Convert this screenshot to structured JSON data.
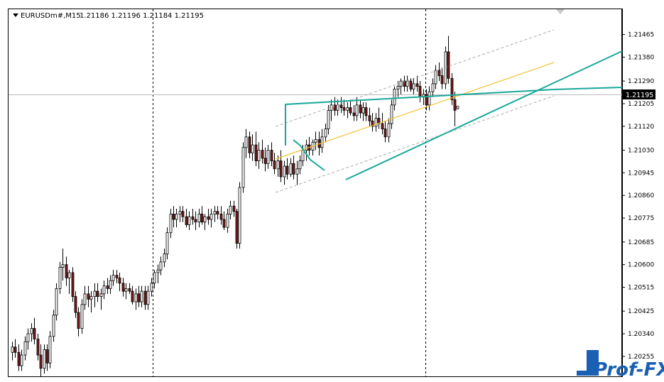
{
  "header": {
    "symbol": "EURUSDm#,M15",
    "ohlc": "1.21186 1.21196 1.21184 1.21195"
  },
  "price_label": "1.21195",
  "logo": {
    "text": "Prof-FX"
  },
  "colors": {
    "background": "#ffffff",
    "candle_bull": "#ffffff",
    "candle_bear": "#7a1c1c",
    "candle_outline": "#000000",
    "trendline": "#1aa89a",
    "midline": "#f2c230",
    "channel": "#aaaaaa",
    "price_line": "#bbbbbb",
    "logo": "#1a5fb4"
  },
  "chart_data": {
    "type": "candlestick",
    "symbol": "EURUSDm#",
    "timeframe": "M15",
    "ylim": [
      1.2018,
      1.2156
    ],
    "y_ticks": [
      "1.21465",
      "1.21380",
      "1.21290",
      "1.21205",
      "1.21120",
      "1.21030",
      "1.20945",
      "1.20860",
      "1.20775",
      "1.20685",
      "1.20600",
      "1.20515",
      "1.20425",
      "1.20340",
      "1.20255"
    ],
    "last_price": 1.21195,
    "grid": false,
    "period_separators": [
      47,
      134
    ],
    "candles": [
      [
        1.2027,
        1.2031,
        1.2024,
        1.2029
      ],
      [
        1.2029,
        1.2032,
        1.2025,
        1.2027
      ],
      [
        1.2027,
        1.203,
        1.202,
        1.2022
      ],
      [
        1.2022,
        1.2028,
        1.202,
        1.2026
      ],
      [
        1.2026,
        1.2033,
        1.2024,
        1.2031
      ],
      [
        1.2031,
        1.2036,
        1.2028,
        1.2034
      ],
      [
        1.2034,
        1.2038,
        1.2031,
        1.2036
      ],
      [
        1.2036,
        1.204,
        1.203,
        1.2032
      ],
      [
        1.2032,
        1.2034,
        1.2024,
        1.2026
      ],
      [
        1.2026,
        1.203,
        1.2018,
        1.2021
      ],
      [
        1.2021,
        1.203,
        1.2019,
        1.2028
      ],
      [
        1.2028,
        1.203,
        1.202,
        1.2023
      ],
      [
        1.2023,
        1.2035,
        1.2021,
        1.2033
      ],
      [
        1.2033,
        1.2043,
        1.2031,
        1.2041
      ],
      [
        1.2041,
        1.2053,
        1.2039,
        1.2051
      ],
      [
        1.2051,
        1.2061,
        1.2049,
        1.2059
      ],
      [
        1.2059,
        1.2066,
        1.2054,
        1.206
      ],
      [
        1.206,
        1.2063,
        1.2052,
        1.2055
      ],
      [
        1.2055,
        1.2058,
        1.2049,
        1.2057
      ],
      [
        1.2057,
        1.2059,
        1.2046,
        1.2048
      ],
      [
        1.2048,
        1.205,
        1.204,
        1.2042
      ],
      [
        1.2042,
        1.2044,
        1.2033,
        1.2036
      ],
      [
        1.2036,
        1.2047,
        1.2034,
        1.2045
      ],
      [
        1.2045,
        1.2052,
        1.2043,
        1.2049
      ],
      [
        1.2049,
        1.2052,
        1.2044,
        1.2047
      ],
      [
        1.2047,
        1.205,
        1.2042,
        1.2048
      ],
      [
        1.2048,
        1.2053,
        1.2044,
        1.205
      ],
      [
        1.205,
        1.2053,
        1.2046,
        1.2048
      ],
      [
        1.2048,
        1.2051,
        1.2043,
        1.2049
      ],
      [
        1.2049,
        1.2054,
        1.2047,
        1.2052
      ],
      [
        1.2052,
        1.2055,
        1.2049,
        1.2051
      ],
      [
        1.2051,
        1.2056,
        1.2049,
        1.2054
      ],
      [
        1.2054,
        1.2058,
        1.2052,
        1.2056
      ],
      [
        1.2056,
        1.2058,
        1.2053,
        1.2055
      ],
      [
        1.2055,
        1.2057,
        1.205,
        1.2053
      ],
      [
        1.2053,
        1.2055,
        1.2048,
        1.205
      ],
      [
        1.205,
        1.2053,
        1.2047,
        1.2051
      ],
      [
        1.2051,
        1.2053,
        1.2049,
        1.205
      ],
      [
        1.205,
        1.2052,
        1.2045,
        1.2046
      ],
      [
        1.2046,
        1.2051,
        1.2043,
        1.2049
      ],
      [
        1.2049,
        1.2052,
        1.2044,
        1.2046
      ],
      [
        1.2046,
        1.2052,
        1.2044,
        1.205
      ],
      [
        1.205,
        1.2052,
        1.2043,
        1.2045
      ],
      [
        1.2045,
        1.2052,
        1.2043,
        1.205
      ],
      [
        1.205,
        1.2055,
        1.2048,
        1.2053
      ],
      [
        1.2053,
        1.2058,
        1.2051,
        1.2057
      ],
      [
        1.2057,
        1.206,
        1.2053,
        1.2058
      ],
      [
        1.2058,
        1.2063,
        1.2056,
        1.2061
      ],
      [
        1.2061,
        1.2066,
        1.2059,
        1.2064
      ],
      [
        1.2064,
        1.2074,
        1.2062,
        1.2072
      ],
      [
        1.2072,
        1.2081,
        1.207,
        1.2079
      ],
      [
        1.2079,
        1.2082,
        1.2074,
        1.2077
      ],
      [
        1.2077,
        1.2081,
        1.2074,
        1.2079
      ],
      [
        1.2079,
        1.2082,
        1.2076,
        1.208
      ],
      [
        1.208,
        1.2082,
        1.2076,
        1.2078
      ],
      [
        1.2078,
        1.2081,
        1.2074,
        1.2075
      ],
      [
        1.2075,
        1.208,
        1.2073,
        1.2078
      ],
      [
        1.2078,
        1.2081,
        1.2075,
        1.2077
      ],
      [
        1.2077,
        1.208,
        1.2073,
        1.2076
      ],
      [
        1.2076,
        1.2081,
        1.2074,
        1.2079
      ],
      [
        1.2079,
        1.2082,
        1.2075,
        1.2076
      ],
      [
        1.2076,
        1.2079,
        1.2073,
        1.2078
      ],
      [
        1.2078,
        1.2081,
        1.2075,
        1.2077
      ],
      [
        1.2077,
        1.2081,
        1.2074,
        1.2079
      ],
      [
        1.2079,
        1.2082,
        1.2076,
        1.208
      ],
      [
        1.208,
        1.2082,
        1.2077,
        1.2079
      ],
      [
        1.2079,
        1.2082,
        1.2075,
        1.2077
      ],
      [
        1.2077,
        1.208,
        1.2073,
        1.2074
      ],
      [
        1.2074,
        1.2081,
        1.2072,
        1.2079
      ],
      [
        1.2079,
        1.2084,
        1.2077,
        1.2082
      ],
      [
        1.2082,
        1.2084,
        1.2078,
        1.208
      ],
      [
        1.208,
        1.2081,
        1.2066,
        1.2068
      ],
      [
        1.2068,
        1.2091,
        1.2066,
        1.2089
      ],
      [
        1.2089,
        1.2106,
        1.2087,
        1.2104
      ],
      [
        1.2104,
        1.2111,
        1.21,
        1.2108
      ],
      [
        1.2108,
        1.211,
        1.21,
        1.2102
      ],
      [
        1.2102,
        1.2109,
        1.2099,
        1.2105
      ],
      [
        1.2105,
        1.211,
        1.2097,
        1.2099
      ],
      [
        1.2099,
        1.2106,
        1.2096,
        1.2103
      ],
      [
        1.2103,
        1.2107,
        1.2098,
        1.21
      ],
      [
        1.21,
        1.2104,
        1.2095,
        1.2098
      ],
      [
        1.2098,
        1.2105,
        1.2096,
        1.2103
      ],
      [
        1.2103,
        1.2106,
        1.2097,
        1.2099
      ],
      [
        1.2099,
        1.2102,
        1.2094,
        1.2096
      ],
      [
        1.2096,
        1.2101,
        1.2093,
        1.2099
      ],
      [
        1.2099,
        1.2103,
        1.2091,
        1.2093
      ],
      [
        1.2093,
        1.2099,
        1.209,
        1.2097
      ],
      [
        1.2097,
        1.21,
        1.2092,
        1.2094
      ],
      [
        1.2094,
        1.21,
        1.2093,
        1.2098
      ],
      [
        1.2098,
        1.2101,
        1.2092,
        1.2094
      ],
      [
        1.2094,
        1.2099,
        1.209,
        1.2096
      ],
      [
        1.2096,
        1.2101,
        1.2094,
        1.2099
      ],
      [
        1.2099,
        1.2105,
        1.2097,
        1.2103
      ],
      [
        1.2103,
        1.2107,
        1.2099,
        1.2105
      ],
      [
        1.2105,
        1.2108,
        1.2101,
        1.2103
      ],
      [
        1.2103,
        1.2107,
        1.2101,
        1.2106
      ],
      [
        1.2106,
        1.211,
        1.2103,
        1.2107
      ],
      [
        1.2107,
        1.211,
        1.2101,
        1.2104
      ],
      [
        1.2104,
        1.2111,
        1.2102,
        1.2108
      ],
      [
        1.2108,
        1.2113,
        1.2106,
        1.2111
      ],
      [
        1.2111,
        1.212,
        1.2109,
        1.2118
      ],
      [
        1.2118,
        1.2122,
        1.2114,
        1.212
      ],
      [
        1.212,
        1.2123,
        1.2116,
        1.2118
      ],
      [
        1.2118,
        1.2122,
        1.2116,
        1.212
      ],
      [
        1.212,
        1.2123,
        1.2117,
        1.2119
      ],
      [
        1.2119,
        1.2122,
        1.2116,
        1.2118
      ],
      [
        1.2118,
        1.2121,
        1.2115,
        1.2119
      ],
      [
        1.2119,
        1.2122,
        1.2116,
        1.2117
      ],
      [
        1.2117,
        1.212,
        1.2114,
        1.2116
      ],
      [
        1.2116,
        1.2123,
        1.2114,
        1.212
      ],
      [
        1.212,
        1.2122,
        1.2115,
        1.2117
      ],
      [
        1.2117,
        1.2121,
        1.2114,
        1.2119
      ],
      [
        1.2119,
        1.2121,
        1.2114,
        1.2116
      ],
      [
        1.2116,
        1.2119,
        1.2112,
        1.2114
      ],
      [
        1.2114,
        1.2117,
        1.211,
        1.2112
      ],
      [
        1.2112,
        1.2117,
        1.211,
        1.2115
      ],
      [
        1.2115,
        1.2119,
        1.2111,
        1.2113
      ],
      [
        1.2113,
        1.2117,
        1.2109,
        1.2111
      ],
      [
        1.2111,
        1.2114,
        1.2106,
        1.2108
      ],
      [
        1.2108,
        1.2115,
        1.2106,
        1.2113
      ],
      [
        1.2113,
        1.2122,
        1.2111,
        1.212
      ],
      [
        1.212,
        1.2127,
        1.2118,
        1.2126
      ],
      [
        1.2126,
        1.2129,
        1.2123,
        1.2127
      ],
      [
        1.2127,
        1.213,
        1.2124,
        1.2129
      ],
      [
        1.2129,
        1.2131,
        1.2125,
        1.2127
      ],
      [
        1.2127,
        1.2131,
        1.2125,
        1.2129
      ],
      [
        1.2129,
        1.213,
        1.2125,
        1.2126
      ],
      [
        1.2126,
        1.213,
        1.2124,
        1.2128
      ],
      [
        1.2128,
        1.2131,
        1.2125,
        1.2127
      ],
      [
        1.2127,
        1.2129,
        1.2121,
        1.2123
      ],
      [
        1.2123,
        1.2126,
        1.212,
        1.2124
      ],
      [
        1.2124,
        1.2126,
        1.2118,
        1.212
      ],
      [
        1.212,
        1.2127,
        1.2118,
        1.2125
      ],
      [
        1.2125,
        1.213,
        1.2123,
        1.2128
      ],
      [
        1.2128,
        1.2135,
        1.2126,
        1.2133
      ],
      [
        1.2133,
        1.2136,
        1.2129,
        1.2131
      ],
      [
        1.2131,
        1.2134,
        1.2126,
        1.2128
      ],
      [
        1.2128,
        1.2142,
        1.2126,
        1.214
      ],
      [
        1.214,
        1.2146,
        1.2128,
        1.213
      ],
      [
        1.213,
        1.2132,
        1.212,
        1.2122
      ],
      [
        1.2122,
        1.2125,
        1.2112,
        1.2118
      ],
      [
        1.21186,
        1.21196,
        1.21184,
        1.21195
      ]
    ]
  }
}
